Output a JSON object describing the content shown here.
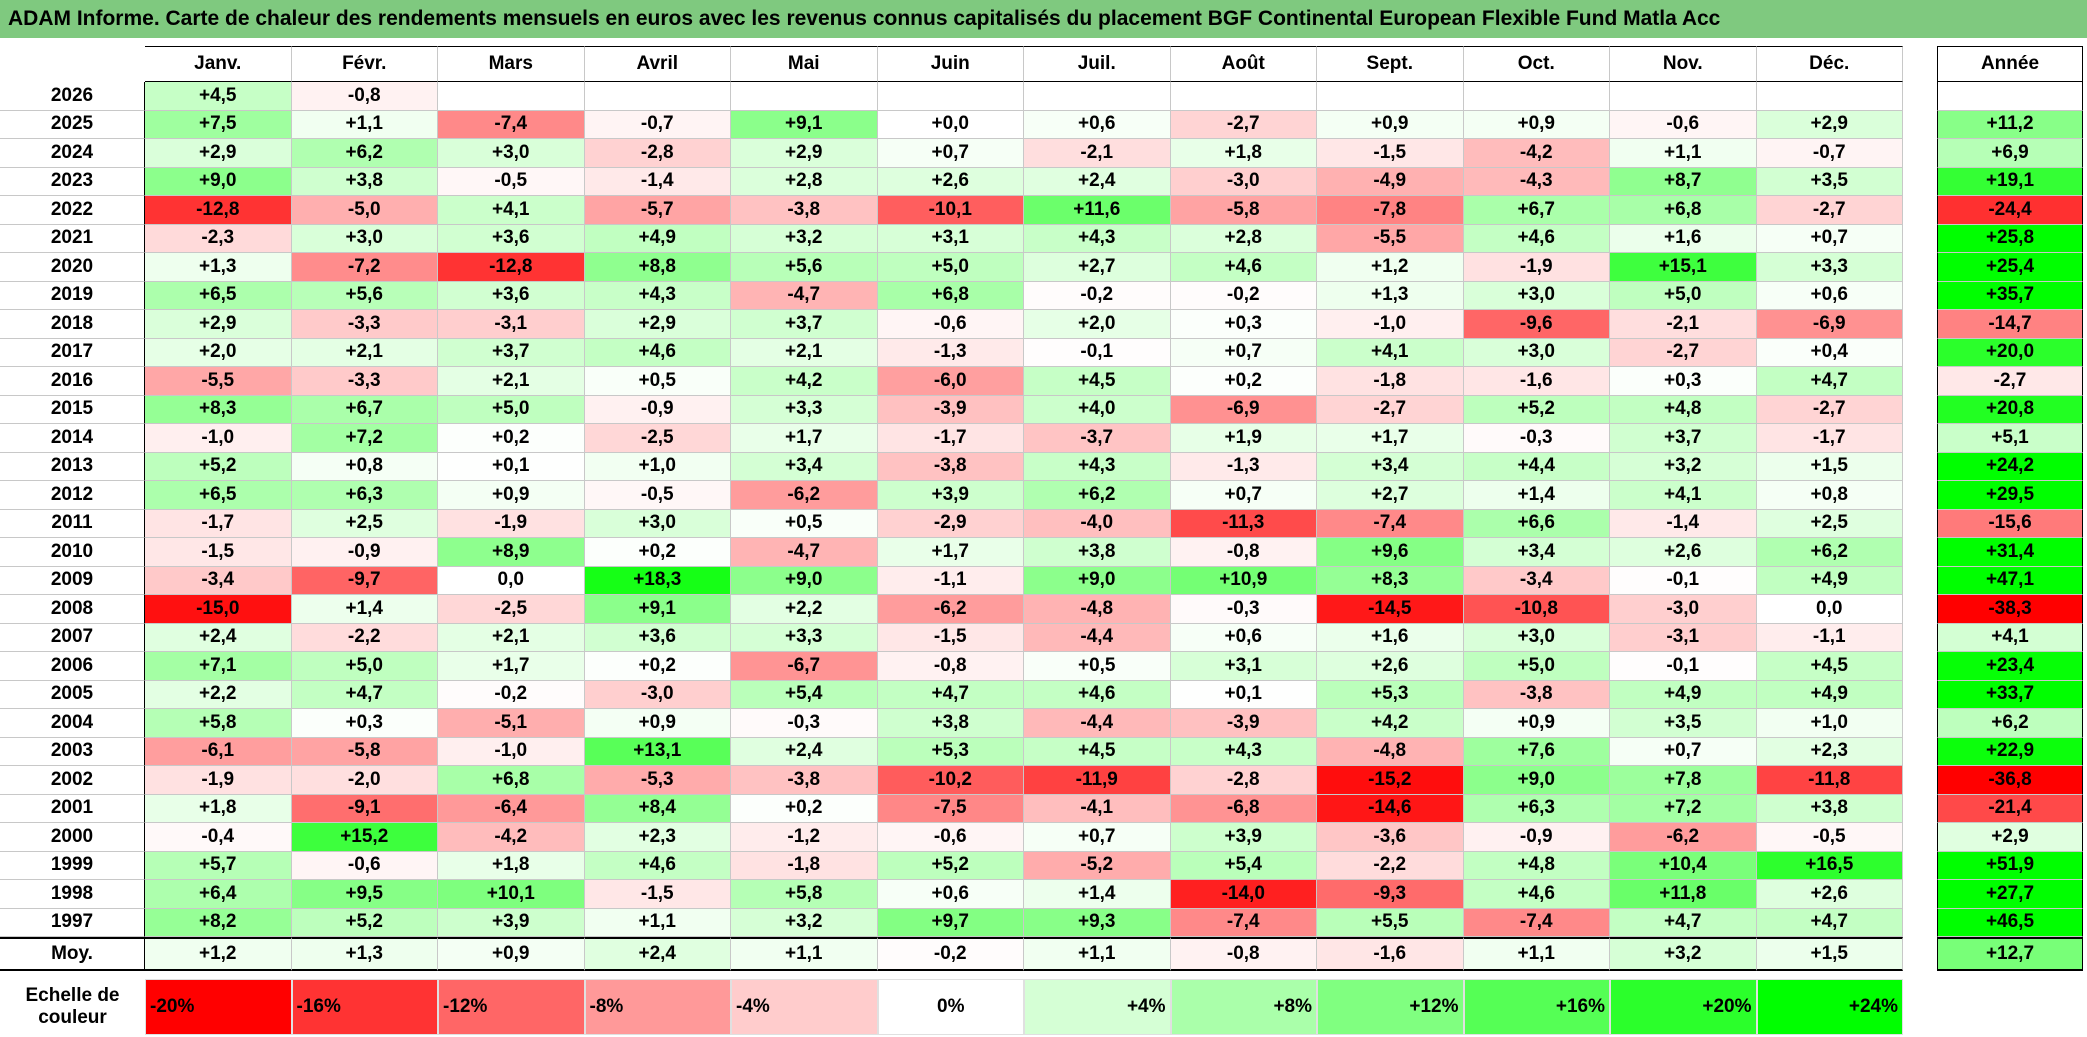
{
  "title": "ADAM Informe. Carte de chaleur des rendements mensuels en euros avec les revenus connus capitalisés du placement BGF Continental European Flexible Fund Matla Acc",
  "months": [
    "Janv.",
    "Févr.",
    "Mars",
    "Avril",
    "Mai",
    "Juin",
    "Juil.",
    "Août",
    "Sept.",
    "Oct.",
    "Nov.",
    "Déc."
  ],
  "year_header": "Année",
  "avg_label": "Moy.",
  "scale_label": "Echelle de couleur",
  "scale": [
    "-20%",
    "-16%",
    "-12%",
    "-8%",
    "-4%",
    "0%",
    "+4%",
    "+8%",
    "+12%",
    "+16%",
    "+20%",
    "+24%"
  ],
  "colors": {
    "title_bg": "#7fc97f",
    "neg_max": "#ff0000",
    "pos_max": "#00ff00",
    "neutral": "#ffffff"
  },
  "chart_data": {
    "type": "heatmap",
    "title": "ADAM Informe. Carte de chaleur des rendements mensuels en euros avec les revenus connus capitalisés du placement BGF Continental European Flexible Fund Matla Acc",
    "x": [
      "Janv.",
      "Févr.",
      "Mars",
      "Avril",
      "Mai",
      "Juin",
      "Juil.",
      "Août",
      "Sept.",
      "Oct.",
      "Nov.",
      "Déc."
    ],
    "rows": [
      {
        "year": "2026",
        "values": [
          "+4,5",
          "-0,8",
          "",
          "",
          "",
          "",
          "",
          "",
          "",
          "",
          "",
          ""
        ],
        "annual": ""
      },
      {
        "year": "2025",
        "values": [
          "+7,5",
          "+1,1",
          "-7,4",
          "-0,7",
          "+9,1",
          "+0,0",
          "+0,6",
          "-2,7",
          "+0,9",
          "+0,9",
          "-0,6",
          "+2,9"
        ],
        "annual": "+11,2"
      },
      {
        "year": "2024",
        "values": [
          "+2,9",
          "+6,2",
          "+3,0",
          "-2,8",
          "+2,9",
          "+0,7",
          "-2,1",
          "+1,8",
          "-1,5",
          "-4,2",
          "+1,1",
          "-0,7"
        ],
        "annual": "+6,9"
      },
      {
        "year": "2023",
        "values": [
          "+9,0",
          "+3,8",
          "-0,5",
          "-1,4",
          "+2,8",
          "+2,6",
          "+2,4",
          "-3,0",
          "-4,9",
          "-4,3",
          "+8,7",
          "+3,5"
        ],
        "annual": "+19,1"
      },
      {
        "year": "2022",
        "values": [
          "-12,8",
          "-5,0",
          "+4,1",
          "-5,7",
          "-3,8",
          "-10,1",
          "+11,6",
          "-5,8",
          "-7,8",
          "+6,7",
          "+6,8",
          "-2,7"
        ],
        "annual": "-24,4"
      },
      {
        "year": "2021",
        "values": [
          "-2,3",
          "+3,0",
          "+3,6",
          "+4,9",
          "+3,2",
          "+3,1",
          "+4,3",
          "+2,8",
          "-5,5",
          "+4,6",
          "+1,6",
          "+0,7"
        ],
        "annual": "+25,8"
      },
      {
        "year": "2020",
        "values": [
          "+1,3",
          "-7,2",
          "-12,8",
          "+8,8",
          "+5,6",
          "+5,0",
          "+2,7",
          "+4,6",
          "+1,2",
          "-1,9",
          "+15,1",
          "+3,3"
        ],
        "annual": "+25,4"
      },
      {
        "year": "2019",
        "values": [
          "+6,5",
          "+5,6",
          "+3,6",
          "+4,3",
          "-4,7",
          "+6,8",
          "-0,2",
          "-0,2",
          "+1,3",
          "+3,0",
          "+5,0",
          "+0,6"
        ],
        "annual": "+35,7"
      },
      {
        "year": "2018",
        "values": [
          "+2,9",
          "-3,3",
          "-3,1",
          "+2,9",
          "+3,7",
          "-0,6",
          "+2,0",
          "+0,3",
          "-1,0",
          "-9,6",
          "-2,1",
          "-6,9"
        ],
        "annual": "-14,7"
      },
      {
        "year": "2017",
        "values": [
          "+2,0",
          "+2,1",
          "+3,7",
          "+4,6",
          "+2,1",
          "-1,3",
          "-0,1",
          "+0,7",
          "+4,1",
          "+3,0",
          "-2,7",
          "+0,4"
        ],
        "annual": "+20,0"
      },
      {
        "year": "2016",
        "values": [
          "-5,5",
          "-3,3",
          "+2,1",
          "+0,5",
          "+4,2",
          "-6,0",
          "+4,5",
          "+0,2",
          "-1,8",
          "-1,6",
          "+0,3",
          "+4,7"
        ],
        "annual": "-2,7"
      },
      {
        "year": "2015",
        "values": [
          "+8,3",
          "+6,7",
          "+5,0",
          "-0,9",
          "+3,3",
          "-3,9",
          "+4,0",
          "-6,9",
          "-2,7",
          "+5,2",
          "+4,8",
          "-2,7"
        ],
        "annual": "+20,8"
      },
      {
        "year": "2014",
        "values": [
          "-1,0",
          "+7,2",
          "+0,2",
          "-2,5",
          "+1,7",
          "-1,7",
          "-3,7",
          "+1,9",
          "+1,7",
          "-0,3",
          "+3,7",
          "-1,7"
        ],
        "annual": "+5,1"
      },
      {
        "year": "2013",
        "values": [
          "+5,2",
          "+0,8",
          "+0,1",
          "+1,0",
          "+3,4",
          "-3,8",
          "+4,3",
          "-1,3",
          "+3,4",
          "+4,4",
          "+3,2",
          "+1,5"
        ],
        "annual": "+24,2"
      },
      {
        "year": "2012",
        "values": [
          "+6,5",
          "+6,3",
          "+0,9",
          "-0,5",
          "-6,2",
          "+3,9",
          "+6,2",
          "+0,7",
          "+2,7",
          "+1,4",
          "+4,1",
          "+0,8"
        ],
        "annual": "+29,5"
      },
      {
        "year": "2011",
        "values": [
          "-1,7",
          "+2,5",
          "-1,9",
          "+3,0",
          "+0,5",
          "-2,9",
          "-4,0",
          "-11,3",
          "-7,4",
          "+6,6",
          "-1,4",
          "+2,5"
        ],
        "annual": "-15,6"
      },
      {
        "year": "2010",
        "values": [
          "-1,5",
          "-0,9",
          "+8,9",
          "+0,2",
          "-4,7",
          "+1,7",
          "+3,8",
          "-0,8",
          "+9,6",
          "+3,4",
          "+2,6",
          "+6,2"
        ],
        "annual": "+31,4"
      },
      {
        "year": "2009",
        "values": [
          "-3,4",
          "-9,7",
          "0,0",
          "+18,3",
          "+9,0",
          "-1,1",
          "+9,0",
          "+10,9",
          "+8,3",
          "-3,4",
          "-0,1",
          "+4,9"
        ],
        "annual": "+47,1"
      },
      {
        "year": "2008",
        "values": [
          "-15,0",
          "+1,4",
          "-2,5",
          "+9,1",
          "+2,2",
          "-6,2",
          "-4,8",
          "-0,3",
          "-14,5",
          "-10,8",
          "-3,0",
          "0,0"
        ],
        "annual": "-38,3"
      },
      {
        "year": "2007",
        "values": [
          "+2,4",
          "-2,2",
          "+2,1",
          "+3,6",
          "+3,3",
          "-1,5",
          "-4,4",
          "+0,6",
          "+1,6",
          "+3,0",
          "-3,1",
          "-1,1"
        ],
        "annual": "+4,1"
      },
      {
        "year": "2006",
        "values": [
          "+7,1",
          "+5,0",
          "+1,7",
          "+0,2",
          "-6,7",
          "-0,8",
          "+0,5",
          "+3,1",
          "+2,6",
          "+5,0",
          "-0,1",
          "+4,5"
        ],
        "annual": "+23,4"
      },
      {
        "year": "2005",
        "values": [
          "+2,2",
          "+4,7",
          "-0,2",
          "-3,0",
          "+5,4",
          "+4,7",
          "+4,6",
          "+0,1",
          "+5,3",
          "-3,8",
          "+4,9",
          "+4,9"
        ],
        "annual": "+33,7"
      },
      {
        "year": "2004",
        "values": [
          "+5,8",
          "+0,3",
          "-5,1",
          "+0,9",
          "-0,3",
          "+3,8",
          "-4,4",
          "-3,9",
          "+4,2",
          "+0,9",
          "+3,5",
          "+1,0"
        ],
        "annual": "+6,2"
      },
      {
        "year": "2003",
        "values": [
          "-6,1",
          "-5,8",
          "-1,0",
          "+13,1",
          "+2,4",
          "+5,3",
          "+4,5",
          "+4,3",
          "-4,8",
          "+7,6",
          "+0,7",
          "+2,3"
        ],
        "annual": "+22,9"
      },
      {
        "year": "2002",
        "values": [
          "-1,9",
          "-2,0",
          "+6,8",
          "-5,3",
          "-3,8",
          "-10,2",
          "-11,9",
          "-2,8",
          "-15,2",
          "+9,0",
          "+7,8",
          "-11,8"
        ],
        "annual": "-36,8"
      },
      {
        "year": "2001",
        "values": [
          "+1,8",
          "-9,1",
          "-6,4",
          "+8,4",
          "+0,2",
          "-7,5",
          "-4,1",
          "-6,8",
          "-14,6",
          "+6,3",
          "+7,2",
          "+3,8"
        ],
        "annual": "-21,4"
      },
      {
        "year": "2000",
        "values": [
          "-0,4",
          "+15,2",
          "-4,2",
          "+2,3",
          "-1,2",
          "-0,6",
          "+0,7",
          "+3,9",
          "-3,6",
          "-0,9",
          "-6,2",
          "-0,5"
        ],
        "annual": "+2,9"
      },
      {
        "year": "1999",
        "values": [
          "+5,7",
          "-0,6",
          "+1,8",
          "+4,6",
          "-1,8",
          "+5,2",
          "-5,2",
          "+5,4",
          "-2,2",
          "+4,8",
          "+10,4",
          "+16,5"
        ],
        "annual": "+51,9"
      },
      {
        "year": "1998",
        "values": [
          "+6,4",
          "+9,5",
          "+10,1",
          "-1,5",
          "+5,8",
          "+0,6",
          "+1,4",
          "-14,0",
          "-9,3",
          "+4,6",
          "+11,8",
          "+2,6"
        ],
        "annual": "+27,7"
      },
      {
        "year": "1997",
        "values": [
          "+8,2",
          "+5,2",
          "+3,9",
          "+1,1",
          "+3,2",
          "+9,7",
          "+9,3",
          "-7,4",
          "+5,5",
          "-7,4",
          "+4,7",
          "+4,7"
        ],
        "annual": "+46,5"
      }
    ],
    "average": {
      "values": [
        "+1,2",
        "+1,3",
        "+0,9",
        "+2,4",
        "+1,1",
        "-0,2",
        "+1,1",
        "-0,8",
        "-1,6",
        "+1,1",
        "+3,2",
        "+1,5"
      ],
      "annual": "+12,7"
    },
    "color_scale": {
      "min": -20,
      "max": 24,
      "unit": "%"
    }
  }
}
